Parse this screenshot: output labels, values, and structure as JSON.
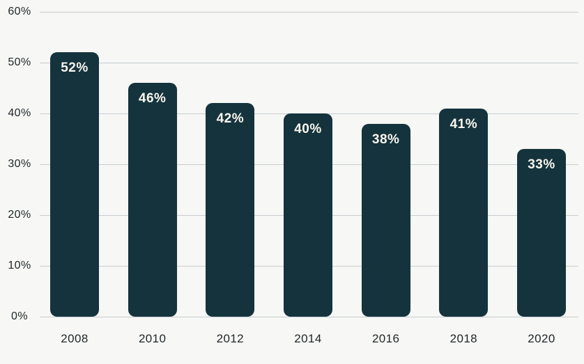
{
  "chart_data": {
    "type": "bar",
    "title": "",
    "xlabel": "",
    "ylabel": "",
    "categories": [
      "2008",
      "2010",
      "2012",
      "2014",
      "2016",
      "2018",
      "2020"
    ],
    "values": [
      52,
      46,
      42,
      40,
      38,
      41,
      33
    ],
    "value_labels": [
      "52%",
      "46%",
      "42%",
      "40%",
      "38%",
      "41%",
      "33%"
    ],
    "ylim": [
      0,
      60
    ],
    "yticks": [
      {
        "value": 0,
        "label": "0%"
      },
      {
        "value": 10,
        "label": "10%"
      },
      {
        "value": 20,
        "label": "20%"
      },
      {
        "value": 30,
        "label": "30%"
      },
      {
        "value": 40,
        "label": "40%"
      },
      {
        "value": 50,
        "label": "50%"
      },
      {
        "value": 60,
        "label": "60%"
      }
    ],
    "grid": true,
    "legend_position": "none",
    "colors": {
      "bar": "#14333d",
      "value_label": "#faf6ee",
      "axis_label": "#1e2628",
      "gridline": "#c6cdd0",
      "background": "#f7f7f5"
    }
  }
}
